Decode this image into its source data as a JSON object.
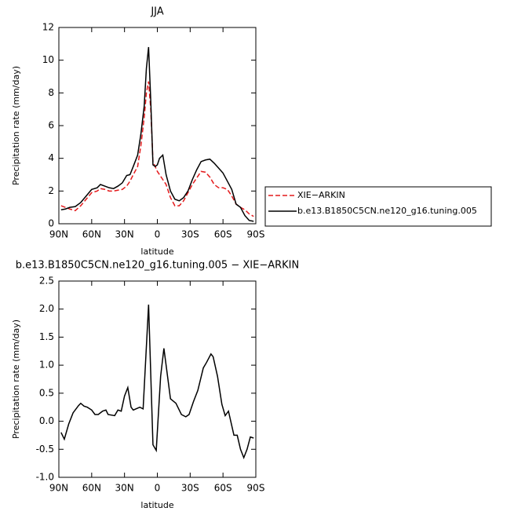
{
  "chart_data": [
    {
      "type": "line",
      "title": "JJA",
      "xlabel": "latitude",
      "ylabel": "Precipitation rate (mm/day)",
      "x": [
        88,
        84,
        80,
        75,
        70,
        65,
        60,
        55,
        52,
        48,
        44,
        40,
        36,
        32,
        28,
        25,
        22,
        18,
        15,
        12,
        10,
        8,
        6,
        4,
        2,
        0,
        -2,
        -5,
        -8,
        -12,
        -16,
        -20,
        -24,
        -28,
        -32,
        -36,
        -40,
        -44,
        -48,
        -52,
        -56,
        -60,
        -64,
        -68,
        -72,
        -76,
        -80,
        -84,
        -88
      ],
      "series": [
        {
          "name": "XIE−ARKIN",
          "color": "#e41a1c",
          "line_style": "dashed",
          "values": [
            1.1,
            1.0,
            0.9,
            0.8,
            1.1,
            1.5,
            1.9,
            2.0,
            2.15,
            2.1,
            2.0,
            2.0,
            2.05,
            2.1,
            2.3,
            2.6,
            3.0,
            3.5,
            4.8,
            6.5,
            8.0,
            8.7,
            7.0,
            3.8,
            3.5,
            3.2,
            3.0,
            2.7,
            2.4,
            1.6,
            1.1,
            1.1,
            1.4,
            1.9,
            2.4,
            2.8,
            3.2,
            3.15,
            2.85,
            2.4,
            2.2,
            2.2,
            2.1,
            1.7,
            1.2,
            1.0,
            0.85,
            0.6,
            0.45
          ]
        },
        {
          "name": "b.e13.B1850C5CN.ne120_g16.tuning.005",
          "color": "#000000",
          "line_style": "solid",
          "values": [
            0.85,
            0.9,
            1.0,
            1.05,
            1.3,
            1.7,
            2.1,
            2.2,
            2.4,
            2.3,
            2.2,
            2.15,
            2.3,
            2.5,
            2.95,
            3.0,
            3.5,
            4.2,
            5.5,
            7.2,
            9.5,
            10.8,
            7.5,
            3.6,
            3.5,
            3.6,
            4.0,
            4.2,
            3.0,
            2.0,
            1.5,
            1.4,
            1.6,
            2.0,
            2.7,
            3.3,
            3.8,
            3.9,
            3.95,
            3.7,
            3.4,
            3.1,
            2.6,
            2.1,
            1.2,
            1.0,
            0.5,
            0.2,
            0.15
          ]
        }
      ],
      "xlim": [
        90,
        -90
      ],
      "xticks": [
        {
          "value": 90,
          "label": "90N"
        },
        {
          "value": 60,
          "label": "60N"
        },
        {
          "value": 30,
          "label": "30N"
        },
        0,
        {
          "value": -30,
          "label": "30S"
        },
        {
          "value": -60,
          "label": "60S"
        },
        {
          "value": -90,
          "label": "90S"
        }
      ],
      "ylim": [
        0,
        12
      ],
      "yticks": [
        0,
        2,
        4,
        6,
        8,
        10,
        12
      ],
      "legend": "right"
    },
    {
      "type": "line",
      "title": "b.e13.B1850C5CN.ne120_g16.tuning.005 − XIE−ARKIN",
      "xlabel": "latitude",
      "ylabel": "Precipitation rate (mm/day)",
      "x": [
        88,
        85,
        81,
        77,
        72,
        70,
        67,
        64,
        60,
        57,
        54,
        50,
        47,
        45,
        39,
        36,
        33,
        30,
        27,
        24,
        22,
        16,
        13,
        8,
        4,
        1,
        -3,
        -6,
        -12,
        -17,
        -22,
        -26,
        -29,
        -33,
        -37,
        -42,
        -45,
        -49,
        -51,
        -55,
        -59,
        -62,
        -65,
        -70,
        -73,
        -76,
        -79,
        -82,
        -85,
        -88
      ],
      "series": [
        {
          "name": null,
          "color": "#000000",
          "line_style": "solid",
          "values": [
            -0.2,
            -0.32,
            -0.05,
            0.15,
            0.28,
            0.32,
            0.27,
            0.25,
            0.2,
            0.12,
            0.12,
            0.18,
            0.2,
            0.12,
            0.1,
            0.2,
            0.18,
            0.45,
            0.6,
            0.25,
            0.2,
            0.25,
            0.22,
            2.08,
            -0.42,
            -0.52,
            0.8,
            1.3,
            0.4,
            0.32,
            0.12,
            0.08,
            0.12,
            0.35,
            0.55,
            0.95,
            1.05,
            1.2,
            1.15,
            0.8,
            0.3,
            0.1,
            0.18,
            -0.25,
            -0.25,
            -0.5,
            -0.65,
            -0.5,
            -0.28,
            -0.3
          ]
        }
      ],
      "xlim": [
        90,
        -90
      ],
      "xticks": [
        {
          "value": 90,
          "label": "90N"
        },
        {
          "value": 60,
          "label": "60N"
        },
        {
          "value": 30,
          "label": "30N"
        },
        0,
        {
          "value": -30,
          "label": "30S"
        },
        {
          "value": -60,
          "label": "60S"
        },
        {
          "value": -90,
          "label": "90S"
        }
      ],
      "ylim": [
        -1,
        2.5
      ],
      "yticks": [
        {
          "value": -1,
          "label": "-1.0"
        },
        -0.5,
        {
          "value": 0,
          "label": "0.0"
        },
        0.5,
        {
          "value": 1,
          "label": "1.0"
        },
        1.5,
        {
          "value": 2,
          "label": "2.0"
        },
        2.5
      ]
    }
  ]
}
